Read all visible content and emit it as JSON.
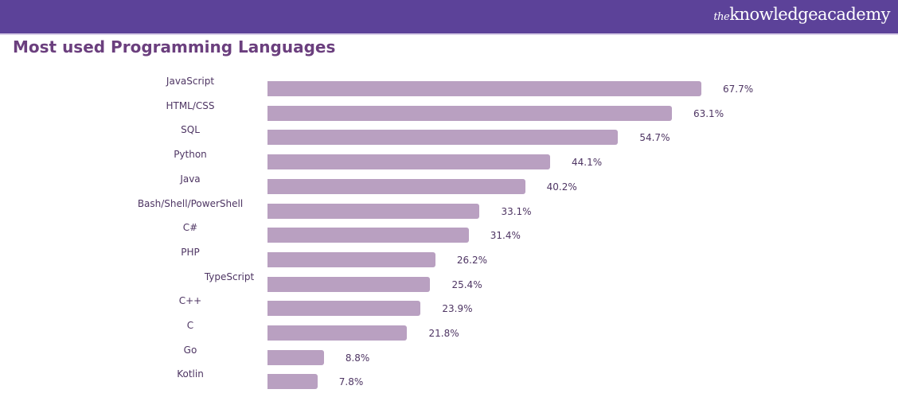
{
  "header": {
    "logo_prefix": "the",
    "logo_main": "knowledgeacademy"
  },
  "chart_data": {
    "type": "bar",
    "orientation": "horizontal",
    "title": "Most used Programming Languages",
    "categories": [
      "JavaScript",
      "HTML/CSS",
      "SQL",
      "Python",
      "Java",
      "Bash/Shell/PowerShell",
      "C#",
      "PHP",
      "TypeScript",
      "C++",
      "C",
      "Go",
      "Kotlin"
    ],
    "values": [
      67.7,
      63.1,
      54.7,
      44.1,
      40.2,
      33.1,
      31.4,
      26.2,
      25.4,
      23.9,
      21.8,
      8.8,
      7.8
    ],
    "value_labels": [
      "67.7%",
      "63.1%",
      "54.7%",
      "44.1%",
      "40.2%",
      "33.1%",
      "31.4%",
      "26.2%",
      "25.4%",
      "23.9%",
      "21.8%",
      "8.8%",
      "7.8%"
    ],
    "xlabel": "",
    "ylabel": "",
    "xlim": [
      0,
      67.7
    ],
    "grid": false,
    "bar_color": "#b9a0c1"
  }
}
